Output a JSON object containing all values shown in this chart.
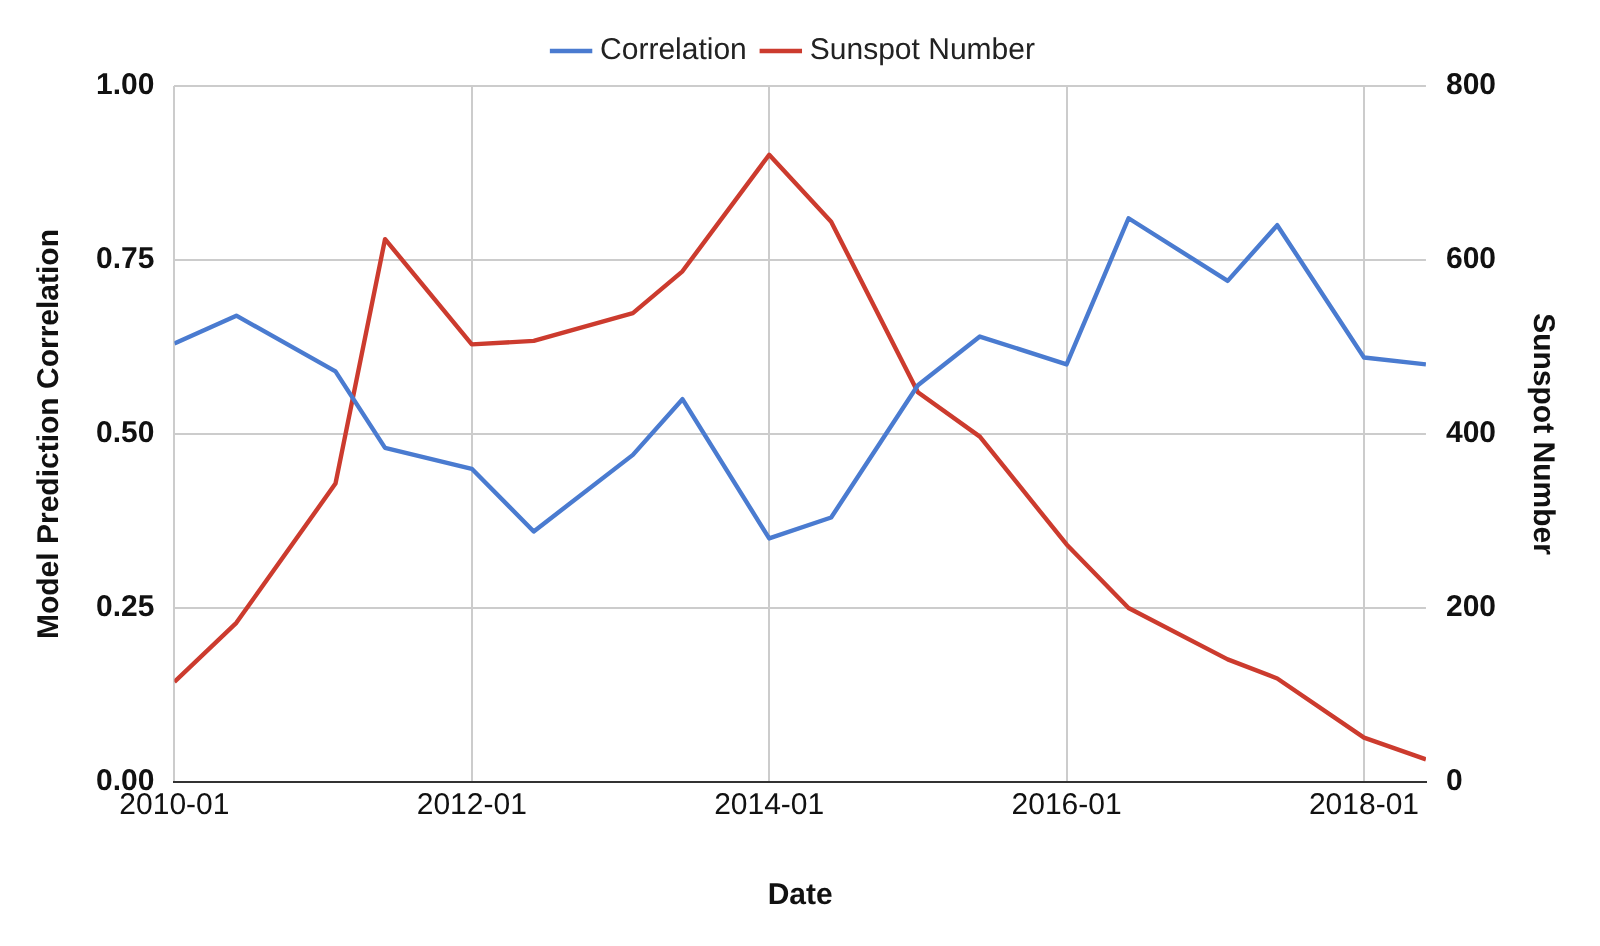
{
  "chart_data": {
    "type": "line",
    "xlabel": "Date",
    "ylabel": "Model Prediction Correlation",
    "y2label": "Sunspot Number",
    "x": [
      "2010-01",
      "2010-06",
      "2011-02",
      "2011-06",
      "2012-01",
      "2012-06",
      "2013-02",
      "2013-06",
      "2014-01",
      "2014-06",
      "2015-01",
      "2015-06",
      "2016-01",
      "2016-06",
      "2017-02",
      "2017-06",
      "2018-01",
      "2018-06"
    ],
    "series": [
      {
        "name": "Correlation",
        "color": "#4a7bd0",
        "values": [
          0.63,
          0.67,
          0.59,
          0.48,
          0.45,
          0.36,
          0.47,
          0.55,
          0.35,
          0.38,
          0.57,
          0.64,
          0.6,
          0.81,
          0.72,
          0.8,
          0.61,
          0.6
        ]
      },
      {
        "name": "Sunspot Number",
        "color": "#cc3b2e",
        "axis": "y2",
        "values": [
          115,
          183,
          343,
          624,
          503,
          507,
          539,
          587,
          721,
          644,
          448,
          397,
          273,
          200,
          141,
          119,
          51,
          26
        ]
      }
    ],
    "xlim": [
      "2010-01",
      "2018-06"
    ],
    "xticks": [
      "2010-01",
      "2012-01",
      "2014-01",
      "2016-01",
      "2018-01"
    ],
    "ylim": [
      0,
      1
    ],
    "yticks": [
      {
        "value": 0,
        "label": "0.00"
      },
      {
        "value": 0.25,
        "label": "0.25"
      },
      {
        "value": 0.5,
        "label": "0.50"
      },
      {
        "value": 0.75,
        "label": "0.75"
      },
      {
        "value": 1,
        "label": "1.00"
      }
    ],
    "y2lim": [
      0,
      800
    ],
    "y2ticks": [
      0,
      200,
      400,
      600,
      800
    ],
    "grid": true,
    "legend": "top",
    "marker": "none",
    "line_style": "solid"
  }
}
